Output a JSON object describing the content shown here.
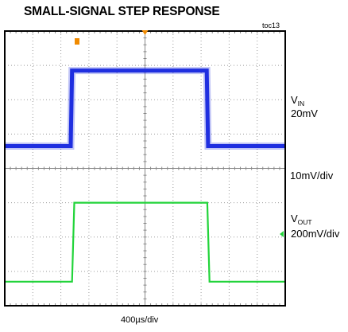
{
  "chart_data": {
    "type": "line",
    "title": "SMALL-SIGNAL STEP RESPONSE",
    "figure_tag": "toc13",
    "xlabel": "400µs/div",
    "grid": true,
    "x_divisions": 10,
    "y_divisions": 8,
    "xlim": [
      0,
      10
    ],
    "ylim": [
      -4,
      4
    ],
    "series": [
      {
        "name_main": "V",
        "name_sub": "IN",
        "scale": "20mV",
        "color": "#1f2fe0",
        "x": [
          0,
          2.35,
          2.4,
          7.2,
          7.25,
          10
        ],
        "y": [
          0.65,
          0.65,
          2.85,
          2.85,
          0.65,
          0.65
        ]
      },
      {
        "name_main": "V",
        "name_sub": "OUT",
        "scale": "200mV/div",
        "color": "#22d43a",
        "x": [
          0,
          2.4,
          2.48,
          7.22,
          7.3,
          10
        ],
        "y": [
          -3.3,
          -3.3,
          -1.0,
          -1.0,
          -3.3,
          -3.3
        ]
      }
    ],
    "annotations": [
      "10mV/div"
    ]
  }
}
